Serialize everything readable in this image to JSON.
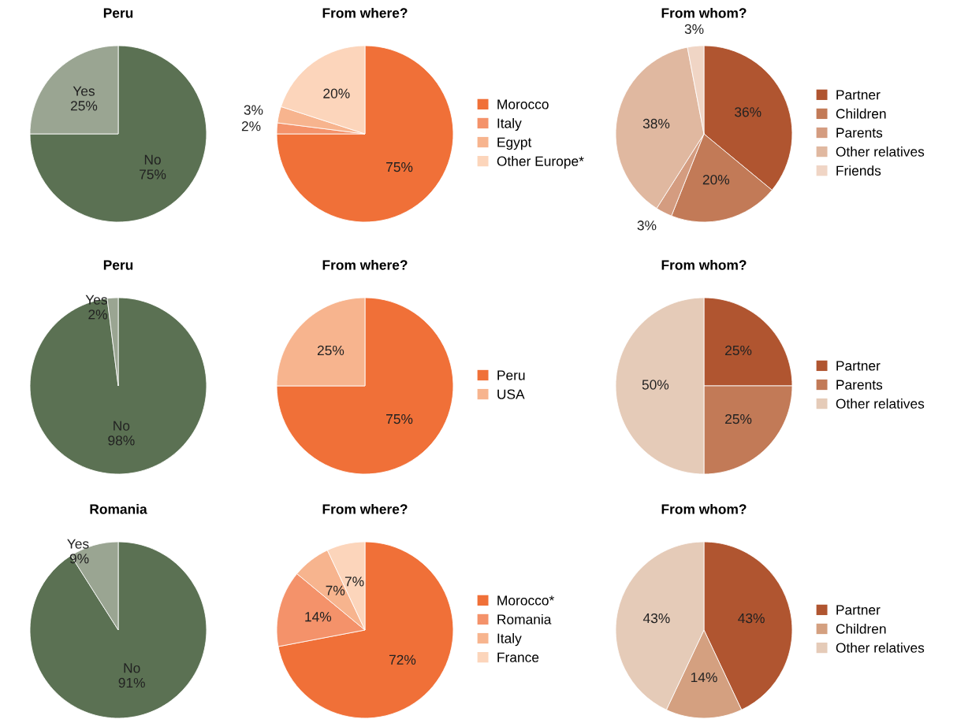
{
  "chart_data": [
    {
      "type": "pie",
      "title": "Peru",
      "categories": [
        "No",
        "Yes"
      ],
      "values": [
        75,
        25
      ],
      "colors": [
        "#5b7153",
        "#9aa592"
      ],
      "value_labels": [
        "75%",
        "25%"
      ],
      "legend": false
    },
    {
      "type": "pie",
      "title": "From where?",
      "categories": [
        "Morocco",
        "Italy",
        "Egypt",
        "Other Europe*"
      ],
      "values": [
        75,
        2,
        3,
        20
      ],
      "colors": [
        "#f07038",
        "#f4926a",
        "#f7b48e",
        "#fcd5bb"
      ],
      "value_labels": [
        "75%",
        "2%",
        "3%",
        "20%"
      ],
      "legend": "right"
    },
    {
      "type": "pie",
      "title": "From whom?",
      "categories": [
        "Partner",
        "Children",
        "Parents",
        "Other relatives",
        "Friends"
      ],
      "values": [
        36,
        20,
        3,
        38,
        3
      ],
      "colors": [
        "#b05530",
        "#c27a57",
        "#d49c80",
        "#e0b8a0",
        "#f0d5c5"
      ],
      "value_labels": [
        "36%",
        "20%",
        "3%",
        "38%",
        "3%"
      ],
      "legend": "right"
    },
    {
      "type": "pie",
      "title": "Peru",
      "categories": [
        "No",
        "Yes"
      ],
      "values": [
        98,
        2
      ],
      "colors": [
        "#5b7153",
        "#9aa592"
      ],
      "value_labels": [
        "98%",
        "2%"
      ],
      "legend": false
    },
    {
      "type": "pie",
      "title": "From where?",
      "categories": [
        "Peru",
        "USA"
      ],
      "values": [
        75,
        25
      ],
      "colors": [
        "#f07038",
        "#f7b48e"
      ],
      "value_labels": [
        "75%",
        "25%"
      ],
      "legend": "right"
    },
    {
      "type": "pie",
      "title": "From whom?",
      "categories": [
        "Partner",
        "Parents",
        "Other relatives"
      ],
      "values": [
        25,
        25,
        50
      ],
      "colors": [
        "#b05530",
        "#c27a57",
        "#e5cbb8"
      ],
      "value_labels": [
        "25%",
        "25%",
        "50%"
      ],
      "legend": "right"
    },
    {
      "type": "pie",
      "title": "Romania",
      "categories": [
        "No",
        "Yes"
      ],
      "values": [
        91,
        9
      ],
      "colors": [
        "#5b7153",
        "#9aa592"
      ],
      "value_labels": [
        "91%",
        "9%"
      ],
      "legend": false
    },
    {
      "type": "pie",
      "title": "From where?",
      "categories": [
        "Morocco*",
        "Romania",
        "Italy",
        "France"
      ],
      "values": [
        72,
        14,
        7,
        7
      ],
      "colors": [
        "#f07038",
        "#f4926a",
        "#f7b48e",
        "#fcd5bb"
      ],
      "value_labels": [
        "72%",
        "14%",
        "7%",
        "7%"
      ],
      "legend": "right"
    },
    {
      "type": "pie",
      "title": "From whom?",
      "categories": [
        "Partner",
        "Children",
        "Other relatives"
      ],
      "values": [
        43,
        14,
        43
      ],
      "colors": [
        "#b05530",
        "#d4a080",
        "#e5cbb8"
      ],
      "value_labels": [
        "43%",
        "14%",
        "43%"
      ],
      "legend": "right"
    }
  ]
}
